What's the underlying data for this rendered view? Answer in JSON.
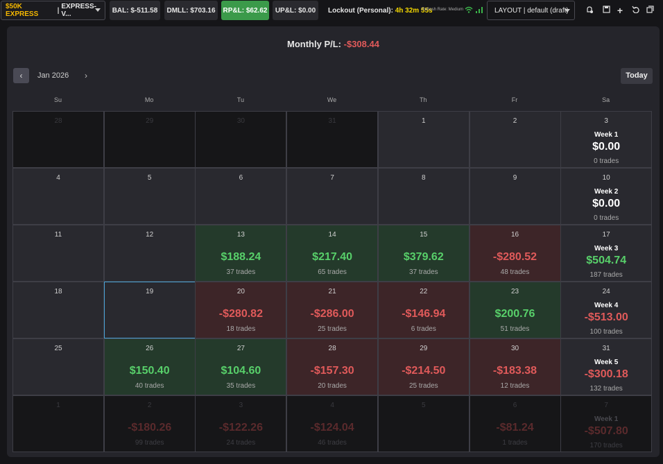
{
  "topbar": {
    "account_tag": "$50K EXPRESS",
    "account_sep": "|",
    "account_name": "EXPRESS-V...",
    "bal": "BAL: $-511.58",
    "dmll": "DMLL: $703.16",
    "rpl": "RP&L: $62.62",
    "upl": "UP&L: $0.00",
    "lockout_label": "Lockout (Personal):",
    "lockout_timer": "4h 32m 55s",
    "refresh_rate": "Refresh Rate: Medium",
    "layout": "LAYOUT | default (draft)",
    "colors": {
      "accent": "#f5b800",
      "green": "#3b9a4a",
      "timer": "#f5d800"
    },
    "icons": [
      "bell-settings-icon",
      "save-icon",
      "plus-icon",
      "undo-icon",
      "window-icon"
    ]
  },
  "calendar": {
    "monthly_label": "Monthly P/L:",
    "monthly_value": "-$308.44",
    "month": "Jan 2026",
    "today_label": "Today",
    "prev_icon": "chevron-left-icon",
    "next_icon": "chevron-right-icon",
    "weekdays": [
      "Su",
      "Mo",
      "Tu",
      "We",
      "Th",
      "Fr",
      "Sa"
    ],
    "weeks": [
      {
        "days": [
          {
            "d": "28",
            "state": "out"
          },
          {
            "d": "29",
            "state": "out"
          },
          {
            "d": "30",
            "state": "out"
          },
          {
            "d": "31",
            "state": "out"
          },
          {
            "d": "1",
            "state": "in"
          },
          {
            "d": "2",
            "state": "in"
          }
        ],
        "summary": {
          "d": "3",
          "label": "Week 1",
          "amount": "$0.00",
          "trades": "0 trades",
          "tone": "w"
        }
      },
      {
        "days": [
          {
            "d": "4",
            "state": "in"
          },
          {
            "d": "5",
            "state": "in"
          },
          {
            "d": "6",
            "state": "in"
          },
          {
            "d": "7",
            "state": "in"
          },
          {
            "d": "8",
            "state": "in"
          },
          {
            "d": "9",
            "state": "in"
          }
        ],
        "summary": {
          "d": "10",
          "label": "Week 2",
          "amount": "$0.00",
          "trades": "0 trades",
          "tone": "w"
        }
      },
      {
        "days": [
          {
            "d": "11",
            "state": "in"
          },
          {
            "d": "12",
            "state": "in"
          },
          {
            "d": "13",
            "state": "pos",
            "amount": "$188.24",
            "trades": "37 trades"
          },
          {
            "d": "14",
            "state": "pos",
            "amount": "$217.40",
            "trades": "65 trades"
          },
          {
            "d": "15",
            "state": "pos",
            "amount": "$379.62",
            "trades": "37 trades"
          },
          {
            "d": "16",
            "state": "neg",
            "amount": "-$280.52",
            "trades": "48 trades"
          }
        ],
        "summary": {
          "d": "17",
          "label": "Week 3",
          "amount": "$504.74",
          "trades": "187 trades",
          "tone": "g"
        }
      },
      {
        "days": [
          {
            "d": "18",
            "state": "in"
          },
          {
            "d": "19",
            "state": "sel"
          },
          {
            "d": "20",
            "state": "neg",
            "amount": "-$280.82",
            "trades": "18 trades"
          },
          {
            "d": "21",
            "state": "neg",
            "amount": "-$286.00",
            "trades": "25 trades"
          },
          {
            "d": "22",
            "state": "neg",
            "amount": "-$146.94",
            "trades": "6 trades"
          },
          {
            "d": "23",
            "state": "pos",
            "amount": "$200.76",
            "trades": "51 trades"
          }
        ],
        "summary": {
          "d": "24",
          "label": "Week 4",
          "amount": "-$513.00",
          "trades": "100 trades",
          "tone": "r"
        }
      },
      {
        "days": [
          {
            "d": "25",
            "state": "in"
          },
          {
            "d": "26",
            "state": "pos",
            "amount": "$150.40",
            "trades": "40 trades"
          },
          {
            "d": "27",
            "state": "pos",
            "amount": "$104.60",
            "trades": "35 trades"
          },
          {
            "d": "28",
            "state": "neg",
            "amount": "-$157.30",
            "trades": "20 trades"
          },
          {
            "d": "29",
            "state": "neg",
            "amount": "-$214.50",
            "trades": "25 trades"
          },
          {
            "d": "30",
            "state": "neg",
            "amount": "-$183.38",
            "trades": "12 trades"
          }
        ],
        "summary": {
          "d": "31",
          "label": "Week 5",
          "amount": "-$300.18",
          "trades": "132 trades",
          "tone": "r"
        }
      },
      {
        "days": [
          {
            "d": "1",
            "state": "out"
          },
          {
            "d": "2",
            "state": "out",
            "amount": "-$180.26",
            "trades": "99 trades"
          },
          {
            "d": "3",
            "state": "out",
            "amount": "-$122.26",
            "trades": "24 trades"
          },
          {
            "d": "4",
            "state": "out",
            "amount": "-$124.04",
            "trades": "46 trades"
          },
          {
            "d": "5",
            "state": "out"
          },
          {
            "d": "6",
            "state": "out",
            "amount": "-$81.24",
            "trades": "1 trades"
          }
        ],
        "summary": {
          "d": "7",
          "label": "Week 1",
          "amount": "-$507.80",
          "trades": "170 trades",
          "tone": "r",
          "out": true
        }
      }
    ]
  }
}
